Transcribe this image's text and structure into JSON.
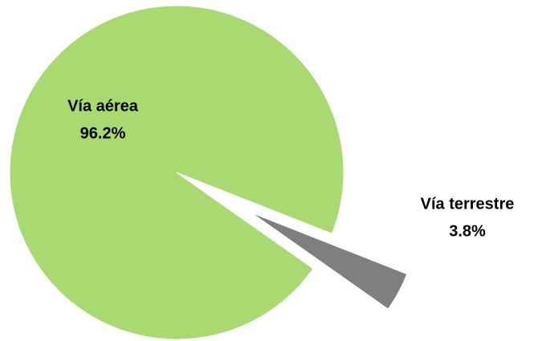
{
  "chart_data": {
    "type": "pie",
    "categories": [
      "Vía aérea",
      "Vía terrestre"
    ],
    "values": [
      96.2,
      3.8
    ],
    "value_labels": [
      "96.2%",
      "3.8%"
    ],
    "colors": [
      "#a9d971",
      "#7f7f7f"
    ]
  }
}
